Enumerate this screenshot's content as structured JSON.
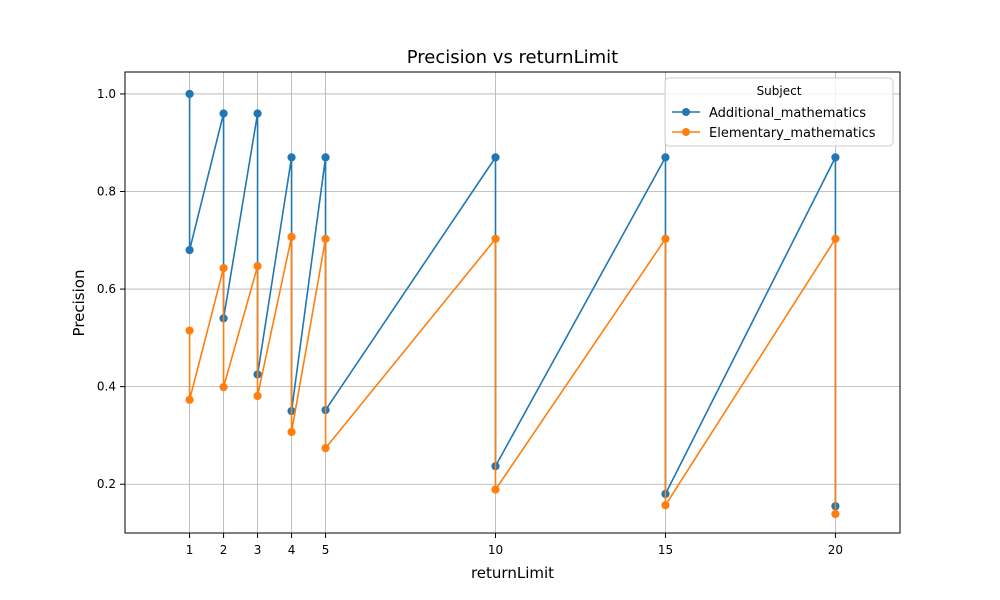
{
  "chart_data": {
    "type": "line",
    "title": "Precision vs returnLimit",
    "xlabel": "returnLimit",
    "ylabel": "Precision",
    "xlim": [
      -0.9,
      21.9
    ],
    "ylim": [
      0.1,
      1.045
    ],
    "x_ticks": [
      1,
      2,
      3,
      4,
      5,
      10,
      15,
      20
    ],
    "y_ticks": [
      0.2,
      0.4,
      0.6,
      0.8,
      1.0
    ],
    "y_tick_labels": [
      "0.2",
      "0.4",
      "0.6",
      "0.8",
      "1.0"
    ],
    "grid": true,
    "legend": {
      "title": "Subject",
      "position": "top-right"
    },
    "series": [
      {
        "name": "Additional_mathematics",
        "color": "#1f77b4",
        "points": [
          {
            "x": 1,
            "y": 1.0
          },
          {
            "x": 1,
            "y": 0.68
          },
          {
            "x": 2,
            "y": 0.96
          },
          {
            "x": 2,
            "y": 0.54
          },
          {
            "x": 3,
            "y": 0.96
          },
          {
            "x": 3,
            "y": 0.425
          },
          {
            "x": 4,
            "y": 0.87
          },
          {
            "x": 4,
            "y": 0.35
          },
          {
            "x": 5,
            "y": 0.87
          },
          {
            "x": 5,
            "y": 0.352
          },
          {
            "x": 10,
            "y": 0.87
          },
          {
            "x": 10,
            "y": 0.237
          },
          {
            "x": 15,
            "y": 0.87
          },
          {
            "x": 15,
            "y": 0.18
          },
          {
            "x": 20,
            "y": 0.87
          },
          {
            "x": 20,
            "y": 0.155
          }
        ]
      },
      {
        "name": "Elementary_mathematics",
        "color": "#ff7f0e",
        "points": [
          {
            "x": 1,
            "y": 0.515
          },
          {
            "x": 1,
            "y": 0.373
          },
          {
            "x": 2,
            "y": 0.643
          },
          {
            "x": 2,
            "y": 0.399
          },
          {
            "x": 3,
            "y": 0.647
          },
          {
            "x": 3,
            "y": 0.381
          },
          {
            "x": 4,
            "y": 0.707
          },
          {
            "x": 4,
            "y": 0.307
          },
          {
            "x": 5,
            "y": 0.703
          },
          {
            "x": 5,
            "y": 0.274
          },
          {
            "x": 10,
            "y": 0.703
          },
          {
            "x": 10,
            "y": 0.189
          },
          {
            "x": 15,
            "y": 0.703
          },
          {
            "x": 15,
            "y": 0.157
          },
          {
            "x": 20,
            "y": 0.703
          },
          {
            "x": 20,
            "y": 0.139
          }
        ]
      }
    ]
  }
}
